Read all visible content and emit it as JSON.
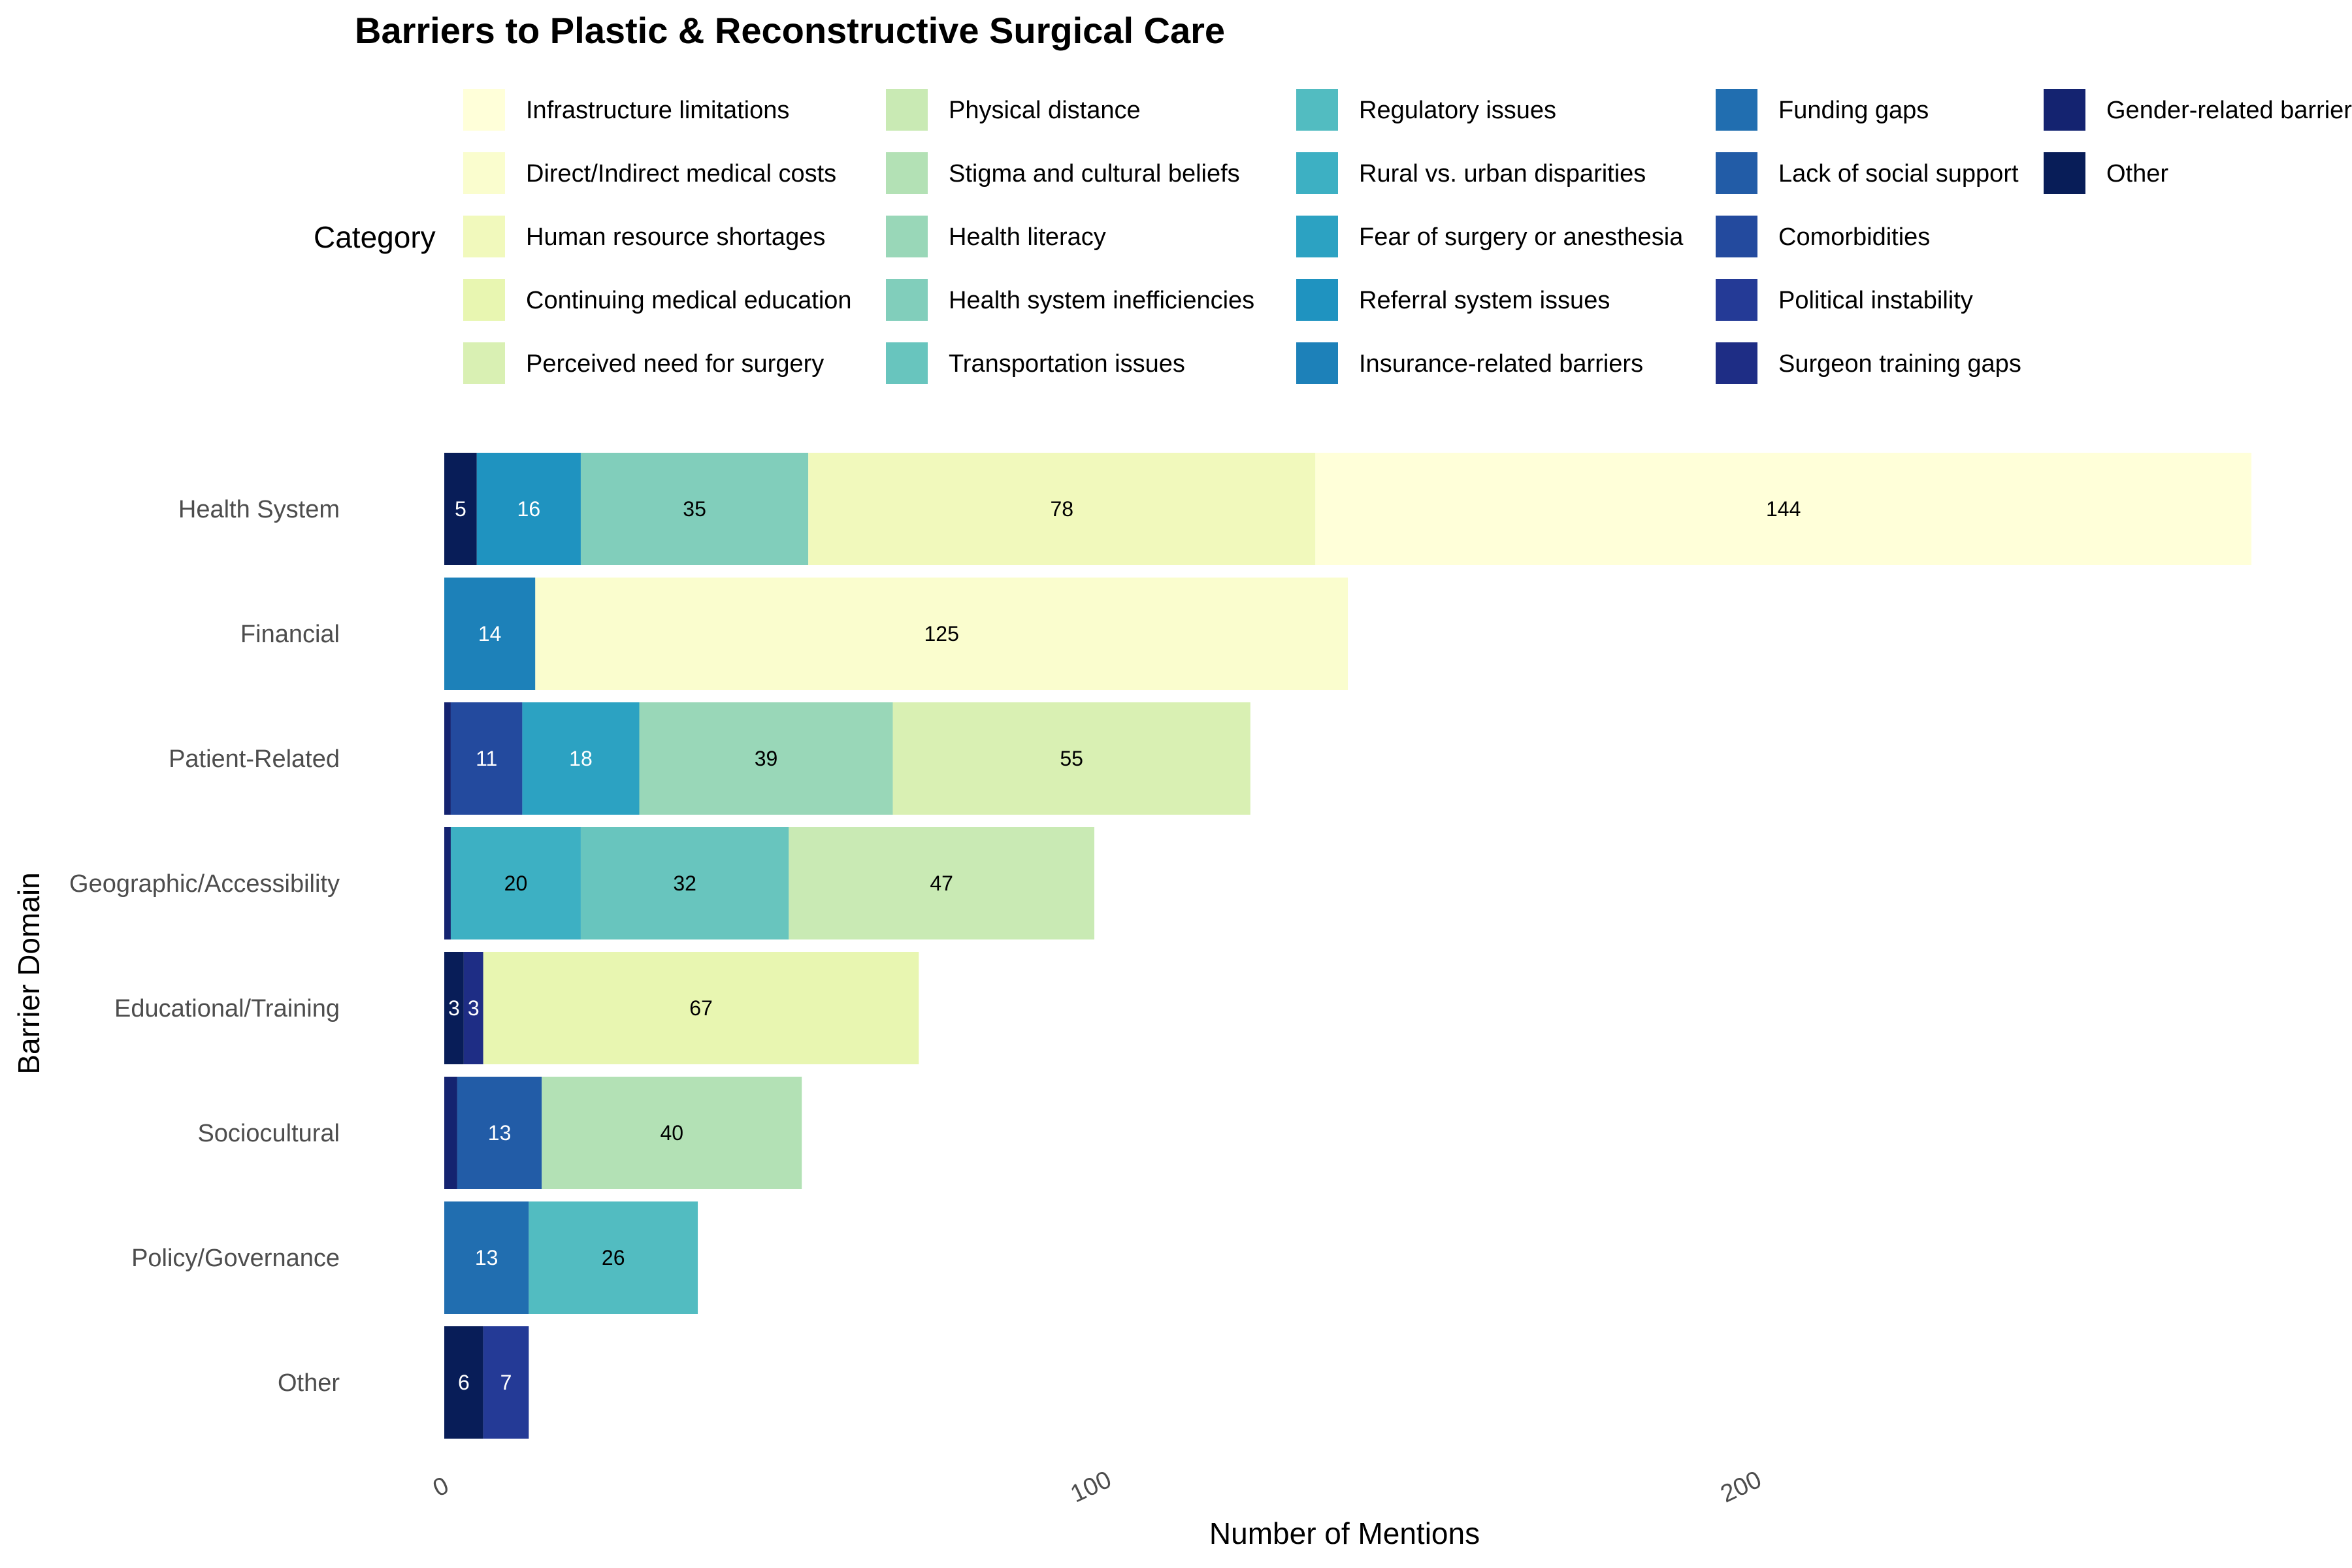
{
  "chart_data": {
    "type": "bar",
    "orientation": "horizontal",
    "stacked": true,
    "title": "Barriers to Plastic & Reconstructive Surgical Care",
    "xlabel": "Number of Mentions",
    "ylabel": "Barrier Domain",
    "legend_title": "Category",
    "legend_position": "top",
    "grid": false,
    "xlim": [
      0,
      275
    ],
    "x_ticks": [
      0,
      100,
      200
    ],
    "categories": [
      "Health System",
      "Financial",
      "Patient-Related",
      "Geographic/Accessibility",
      "Educational/Training",
      "Sociocultural",
      "Policy/Governance",
      "Other"
    ],
    "series": [
      {
        "name": "Infrastructure limitations",
        "color": "#ffffd9",
        "segments": [
          {
            "domain": "Health System",
            "value": 144
          }
        ]
      },
      {
        "name": "Direct/Indirect medical costs",
        "color": "#fafdce",
        "segments": [
          {
            "domain": "Financial",
            "value": 125
          }
        ]
      },
      {
        "name": "Human resource shortages",
        "color": "#f1f9bc",
        "segments": [
          {
            "domain": "Health System",
            "value": 78
          }
        ]
      },
      {
        "name": "Continuing medical education",
        "color": "#e8f6b1",
        "segments": [
          {
            "domain": "Educational/Training",
            "value": 67
          }
        ]
      },
      {
        "name": "Perceived need for surgery",
        "color": "#d9f0b3",
        "segments": [
          {
            "domain": "Patient-Related",
            "value": 55
          }
        ]
      },
      {
        "name": "Physical distance",
        "color": "#c9eab4",
        "segments": [
          {
            "domain": "Geographic/Accessibility",
            "value": 47
          }
        ]
      },
      {
        "name": "Stigma and cultural beliefs",
        "color": "#b3e1b5",
        "segments": [
          {
            "domain": "Sociocultural",
            "value": 40
          }
        ]
      },
      {
        "name": "Health literacy",
        "color": "#99d7b8",
        "segments": [
          {
            "domain": "Patient-Related",
            "value": 39
          }
        ]
      },
      {
        "name": "Health system inefficiencies",
        "color": "#81cebb",
        "segments": [
          {
            "domain": "Health System",
            "value": 35
          }
        ]
      },
      {
        "name": "Transportation issues",
        "color": "#68c5be",
        "segments": [
          {
            "domain": "Geographic/Accessibility",
            "value": 32
          }
        ]
      },
      {
        "name": "Regulatory issues",
        "color": "#52bcc1",
        "segments": [
          {
            "domain": "Policy/Governance",
            "value": 26
          }
        ]
      },
      {
        "name": "Rural vs. urban disparities",
        "color": "#3db0c3",
        "segments": [
          {
            "domain": "Geographic/Accessibility",
            "value": 20
          }
        ]
      },
      {
        "name": "Fear of surgery or anesthesia",
        "color": "#2ca2c2",
        "segments": [
          {
            "domain": "Patient-Related",
            "value": 18
          }
        ]
      },
      {
        "name": "Referral system issues",
        "color": "#1f93c0",
        "segments": [
          {
            "domain": "Health System",
            "value": 16
          }
        ]
      },
      {
        "name": "Insurance-related barriers",
        "color": "#1d81b9",
        "segments": [
          {
            "domain": "Financial",
            "value": 14
          }
        ]
      },
      {
        "name": "Funding gaps",
        "color": "#216eb0",
        "segments": [
          {
            "domain": "Policy/Governance",
            "value": 13
          }
        ]
      },
      {
        "name": "Lack of social support",
        "color": "#225ca7",
        "segments": [
          {
            "domain": "Sociocultural",
            "value": 13
          }
        ]
      },
      {
        "name": "Comorbidities",
        "color": "#234a9e",
        "segments": [
          {
            "domain": "Patient-Related",
            "value": 11
          }
        ]
      },
      {
        "name": "Political instability",
        "color": "#243a96",
        "segments": [
          {
            "domain": "Other",
            "value": 7
          }
        ]
      },
      {
        "name": "Surgeon training gaps",
        "color": "#1e2d85",
        "segments": [
          {
            "domain": "Educational/Training",
            "value": 3
          }
        ]
      },
      {
        "name": "Gender-related barriers",
        "color": "#142370",
        "segments": [
          {
            "domain": "Sociocultural",
            "value": 2
          },
          {
            "domain": "Patient-Related",
            "value": 1
          },
          {
            "domain": "Geographic/Accessibility",
            "value": 1
          }
        ]
      },
      {
        "name": "Other",
        "color": "#081d58",
        "segments": [
          {
            "domain": "Health System",
            "value": 5
          },
          {
            "domain": "Educational/Training",
            "value": 3
          },
          {
            "domain": "Other",
            "value": 6
          }
        ]
      }
    ],
    "stack_order": {
      "Health System": [
        "Other",
        "Referral system issues",
        "Health system inefficiencies",
        "Human resource shortages",
        "Infrastructure limitations"
      ],
      "Financial": [
        "Insurance-related barriers",
        "Direct/Indirect medical costs"
      ],
      "Patient-Related": [
        "Gender-related barriers",
        "Comorbidities",
        "Fear of surgery or anesthesia",
        "Health literacy",
        "Perceived need for surgery"
      ],
      "Geographic/Accessibility": [
        "Gender-related barriers",
        "Rural vs. urban disparities",
        "Transportation issues",
        "Physical distance"
      ],
      "Educational/Training": [
        "Other",
        "Surgeon training gaps",
        "Continuing medical education"
      ],
      "Sociocultural": [
        "Gender-related barriers",
        "Lack of social support",
        "Stigma and cultural beliefs"
      ],
      "Policy/Governance": [
        "Funding gaps",
        "Regulatory issues"
      ],
      "Other": [
        "Other",
        "Political instability"
      ]
    },
    "label_min_value": 3
  }
}
